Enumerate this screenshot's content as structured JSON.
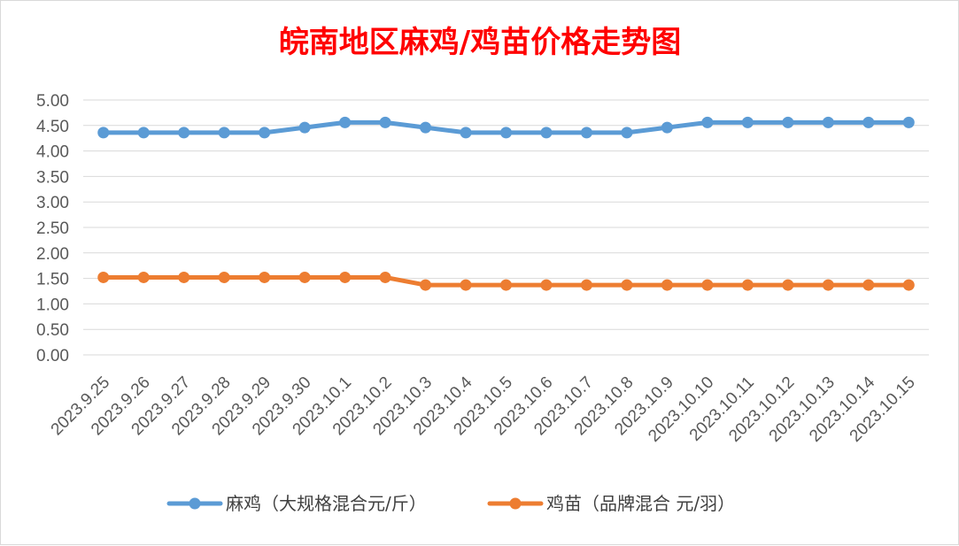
{
  "chart_data": {
    "type": "line",
    "title": "皖南地区麻鸡/鸡苗价格走势图",
    "xlabel": "",
    "ylabel": "",
    "categories": [
      "2023.9.25",
      "2023.9.26",
      "2023.9.27",
      "2023.9.28",
      "2023.9.29",
      "2023.9.30",
      "2023.10.1",
      "2023.10.2",
      "2023.10.3",
      "2023.10.4",
      "2023.10.5",
      "2023.10.6",
      "2023.10.7",
      "2023.10.8",
      "2023.10.9",
      "2023.10.10",
      "2023.10.11",
      "2023.10.12",
      "2023.10.13",
      "2023.10.14",
      "2023.10.15"
    ],
    "ylim": [
      0,
      5
    ],
    "yticks": [
      "0.00",
      "0.50",
      "1.00",
      "1.50",
      "2.00",
      "2.50",
      "3.00",
      "3.50",
      "4.00",
      "4.50",
      "5.00"
    ],
    "grid": true,
    "legend_position": "bottom",
    "series": [
      {
        "name": "麻鸡（大规格混合元/斤）",
        "color": "#5b9bd5",
        "values": [
          4.36,
          4.36,
          4.36,
          4.36,
          4.36,
          4.46,
          4.56,
          4.56,
          4.46,
          4.36,
          4.36,
          4.36,
          4.36,
          4.36,
          4.46,
          4.56,
          4.56,
          4.56,
          4.56,
          4.56,
          4.56
        ]
      },
      {
        "name": "鸡苗（品牌混合 元/羽）",
        "color": "#ed7d31",
        "values": [
          1.52,
          1.52,
          1.52,
          1.52,
          1.52,
          1.52,
          1.52,
          1.52,
          1.37,
          1.37,
          1.37,
          1.37,
          1.37,
          1.37,
          1.37,
          1.37,
          1.37,
          1.37,
          1.37,
          1.37,
          1.37
        ]
      }
    ]
  }
}
